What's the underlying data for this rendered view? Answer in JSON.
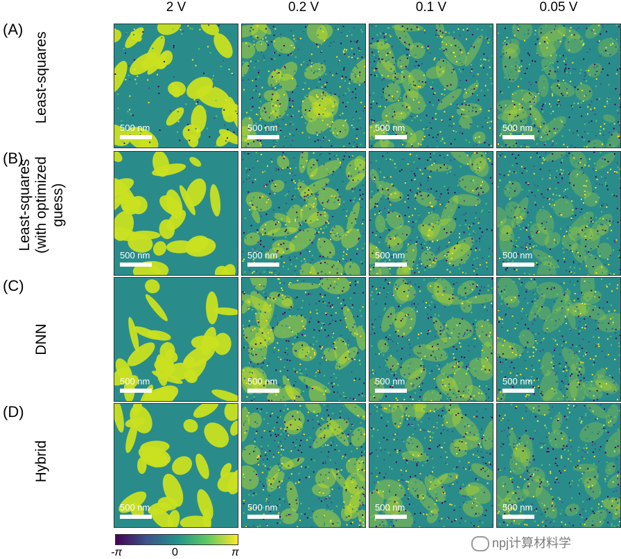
{
  "columns": [
    "2 V",
    "0.2 V",
    "0.1 V",
    "0.05 V"
  ],
  "rows": [
    {
      "letter": "(A)",
      "label_lines": [
        "Least-squares"
      ]
    },
    {
      "letter": "(B)",
      "label_lines": [
        "Least-squares",
        "(with optimized",
        "guess)"
      ]
    },
    {
      "letter": "(C)",
      "label_lines": [
        "DNN"
      ]
    },
    {
      "letter": "(D)",
      "label_lines": [
        "Hybrid"
      ]
    }
  ],
  "scalebar_label": "500 nm",
  "colorbar": {
    "min": "-π",
    "mid": "0",
    "max": "π",
    "colors": [
      "#440154",
      "#3b528b",
      "#21918c",
      "#5ec962",
      "#fde725"
    ]
  },
  "watermark": "npj计算材料学"
}
